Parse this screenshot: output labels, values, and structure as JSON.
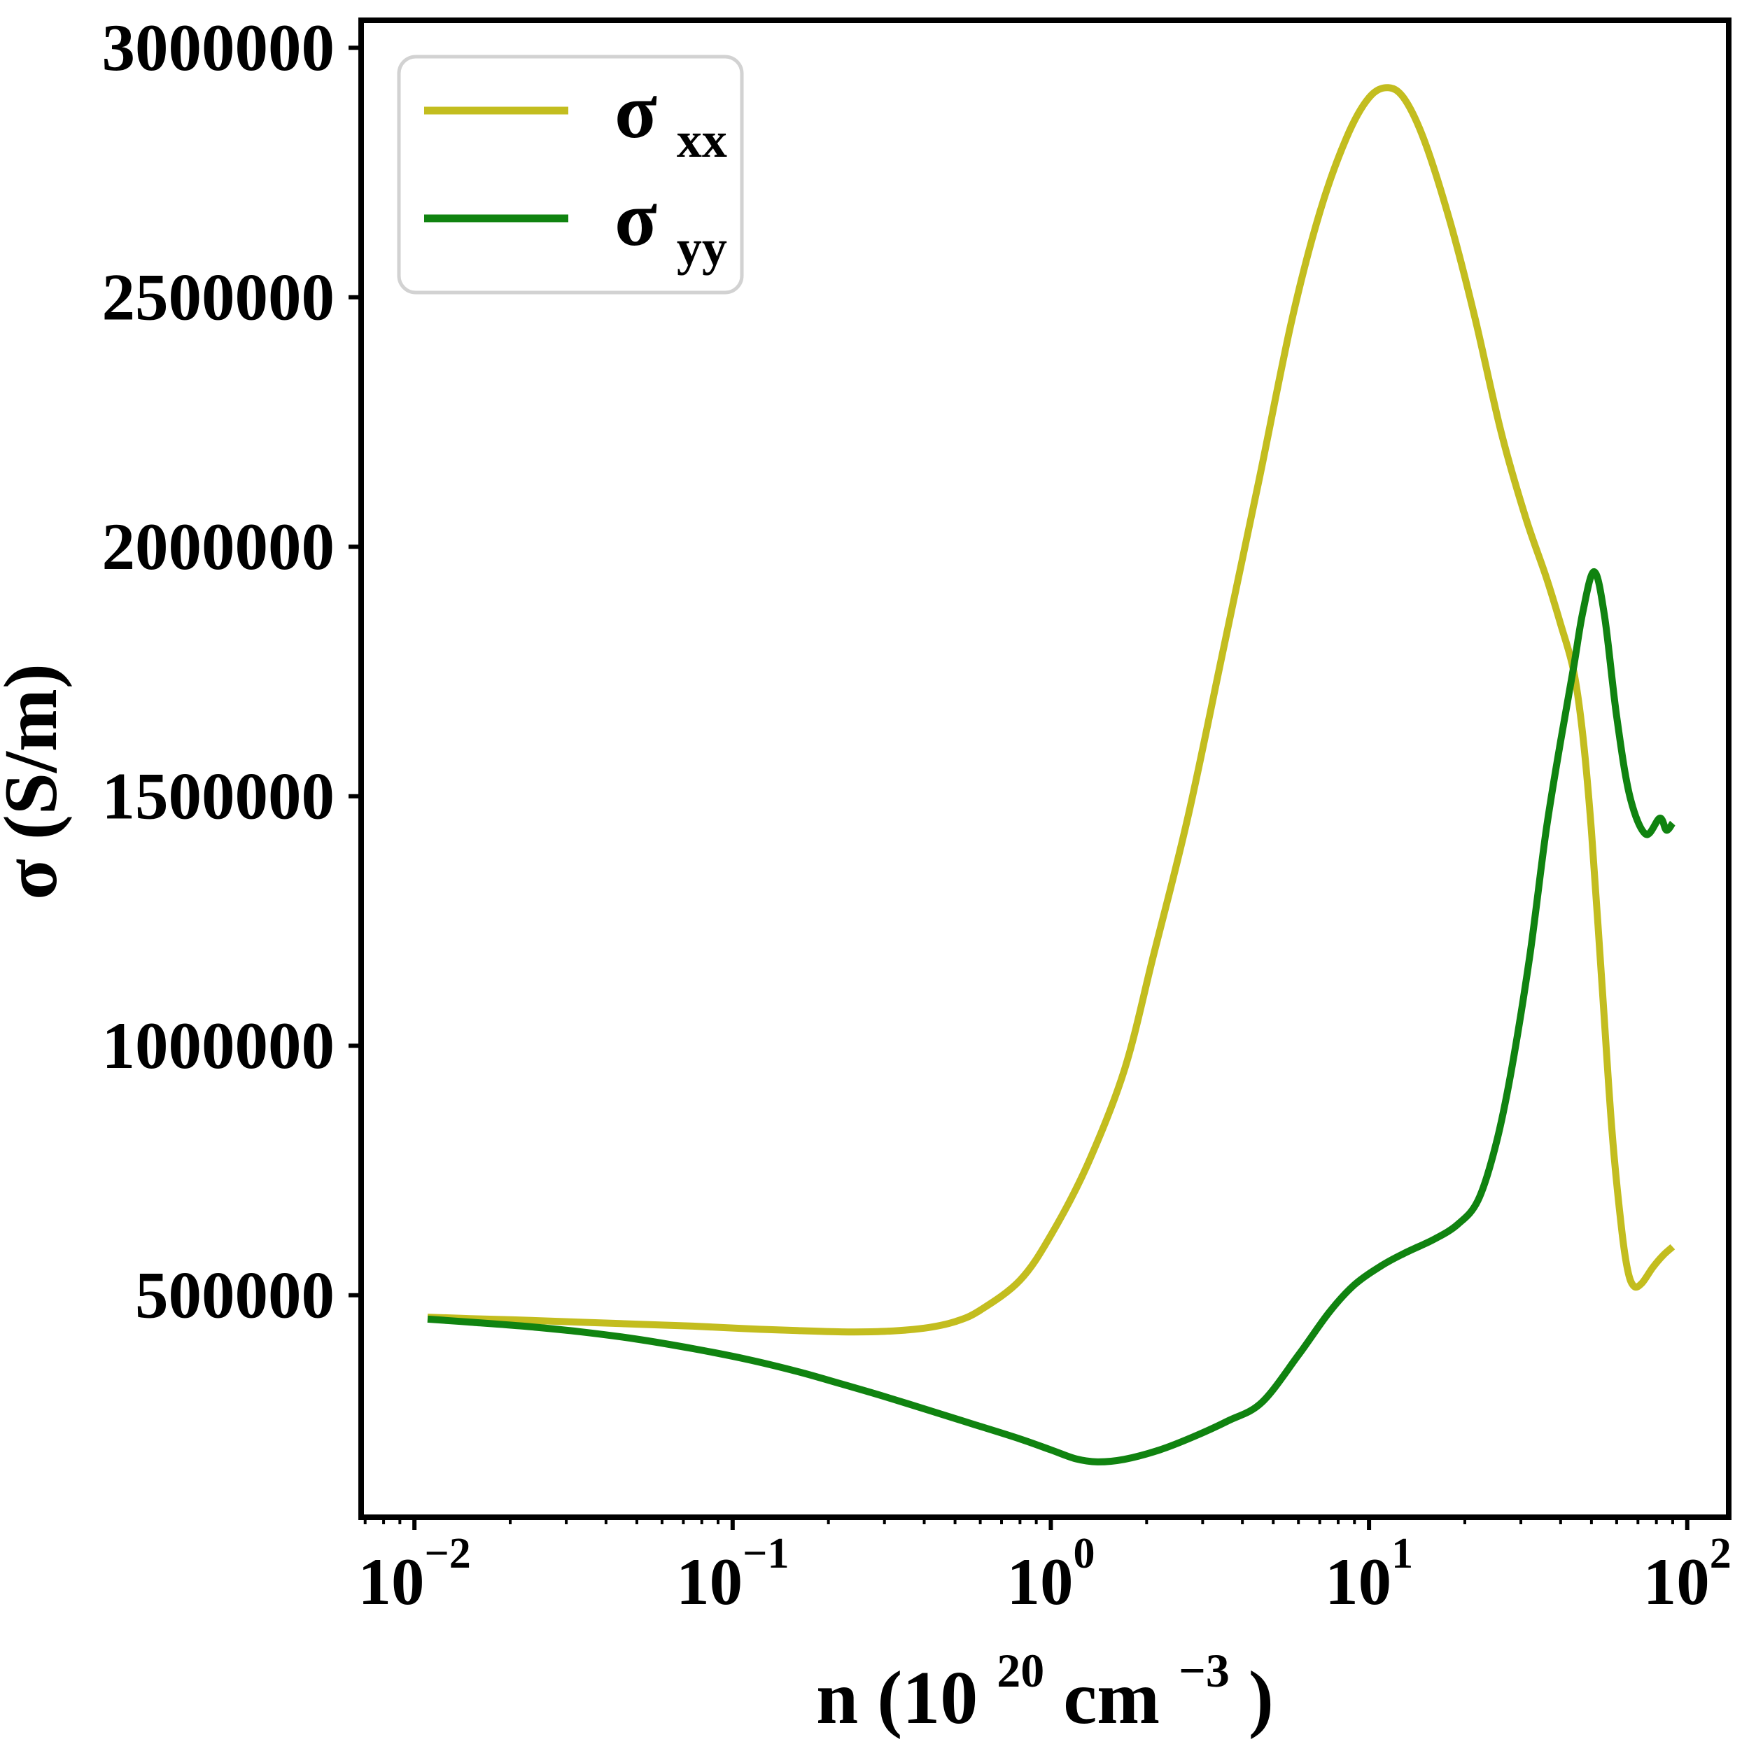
{
  "figure": {
    "background": "#ffffff"
  },
  "chart_data": {
    "type": "line",
    "xscale": "log",
    "xlim": [
      0.0068,
      135
    ],
    "ylim": [
      55000,
      3055000
    ],
    "grid": false,
    "ylabel": "σ (S/m)",
    "xlabel_parts": {
      "prefix": "n (10",
      "sup1": "20",
      "mid": " cm",
      "sup2": "−3",
      "suffix": ")"
    },
    "x_tick_exponents": [
      -2,
      -1,
      0,
      1,
      2
    ],
    "x_tick_base": "10",
    "y_ticks": [
      500000,
      1000000,
      1500000,
      2000000,
      2500000,
      3000000
    ],
    "legend": {
      "position": "upper-left",
      "entries": [
        {
          "label_base": "σ",
          "label_sub": "xx",
          "color": "#c3bd1f"
        },
        {
          "label_base": "σ",
          "label_sub": "yy",
          "color": "#108310"
        }
      ]
    },
    "series": [
      {
        "name": "sigma_xx",
        "color": "#c3bd1f",
        "points": [
          [
            0.011,
            456000
          ],
          [
            0.015,
            453000
          ],
          [
            0.022,
            450000
          ],
          [
            0.033,
            446000
          ],
          [
            0.05,
            442000
          ],
          [
            0.075,
            438000
          ],
          [
            0.11,
            433000
          ],
          [
            0.16,
            429000
          ],
          [
            0.22,
            426500
          ],
          [
            0.3,
            427500
          ],
          [
            0.4,
            434000
          ],
          [
            0.5,
            447000
          ],
          [
            0.6,
            470000
          ],
          [
            0.8,
            530000
          ],
          [
            1.0,
            620000
          ],
          [
            1.3,
            760000
          ],
          [
            1.7,
            950000
          ],
          [
            2.1,
            1180000
          ],
          [
            2.7,
            1460000
          ],
          [
            3.5,
            1800000
          ],
          [
            4.5,
            2130000
          ],
          [
            5.7,
            2450000
          ],
          [
            7,
            2670000
          ],
          [
            8.5,
            2820000
          ],
          [
            10,
            2900000
          ],
          [
            11.5,
            2920000
          ],
          [
            13,
            2895000
          ],
          [
            15,
            2810000
          ],
          [
            18,
            2650000
          ],
          [
            21.5,
            2460000
          ],
          [
            26,
            2230000
          ],
          [
            31,
            2060000
          ],
          [
            36,
            1940000
          ],
          [
            40,
            1845000
          ],
          [
            44,
            1750000
          ],
          [
            47,
            1620000
          ],
          [
            50,
            1430000
          ],
          [
            54,
            1120000
          ],
          [
            58,
            830000
          ],
          [
            62,
            640000
          ],
          [
            65,
            550000
          ],
          [
            68,
            518000
          ],
          [
            72,
            524000
          ],
          [
            78,
            556000
          ],
          [
            84,
            580000
          ],
          [
            90,
            597000
          ]
        ]
      },
      {
        "name": "sigma_yy",
        "color": "#108310",
        "points": [
          [
            0.011,
            452000
          ],
          [
            0.015,
            446000
          ],
          [
            0.022,
            438000
          ],
          [
            0.033,
            427000
          ],
          [
            0.05,
            412000
          ],
          [
            0.075,
            393000
          ],
          [
            0.11,
            372000
          ],
          [
            0.16,
            347000
          ],
          [
            0.22,
            322000
          ],
          [
            0.3,
            297000
          ],
          [
            0.42,
            268000
          ],
          [
            0.58,
            240000
          ],
          [
            0.8,
            212000
          ],
          [
            1.0,
            190000
          ],
          [
            1.2,
            172000
          ],
          [
            1.4,
            166000
          ],
          [
            1.7,
            171000
          ],
          [
            2.2,
            190000
          ],
          [
            2.8,
            216000
          ],
          [
            3.6,
            248000
          ],
          [
            4.6,
            285000
          ],
          [
            6,
            380000
          ],
          [
            7.5,
            466000
          ],
          [
            9,
            521000
          ],
          [
            11,
            560000
          ],
          [
            13,
            585000
          ],
          [
            16,
            612000
          ],
          [
            19,
            642000
          ],
          [
            22,
            690000
          ],
          [
            25,
            800000
          ],
          [
            28,
            950000
          ],
          [
            32,
            1180000
          ],
          [
            36,
            1430000
          ],
          [
            40,
            1610000
          ],
          [
            44,
            1760000
          ],
          [
            47,
            1870000
          ],
          [
            51,
            1950000
          ],
          [
            55,
            1860000
          ],
          [
            60,
            1660000
          ],
          [
            66,
            1500000
          ],
          [
            74,
            1424000
          ],
          [
            82,
            1456000
          ],
          [
            86,
            1432000
          ],
          [
            90,
            1446000
          ]
        ]
      }
    ]
  }
}
